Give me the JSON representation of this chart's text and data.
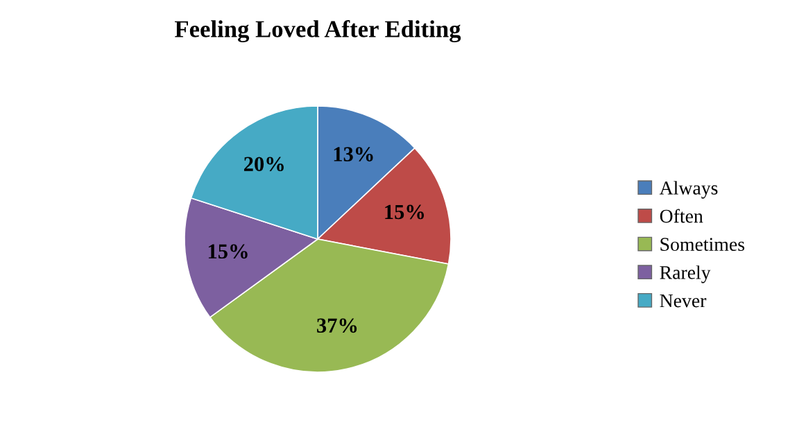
{
  "chart_data": {
    "type": "pie",
    "title": "Feeling Loved After Editing",
    "categories": [
      "Always",
      "Often",
      "Sometimes",
      "Rarely",
      "Never"
    ],
    "values": [
      13,
      15,
      37,
      15,
      20
    ],
    "value_labels": [
      "13%",
      "15%",
      "37%",
      "15%",
      "20%"
    ],
    "colors": [
      "#4a7ebb",
      "#be4b48",
      "#98b954",
      "#7d60a0",
      "#46aac5"
    ],
    "legend": "right"
  }
}
